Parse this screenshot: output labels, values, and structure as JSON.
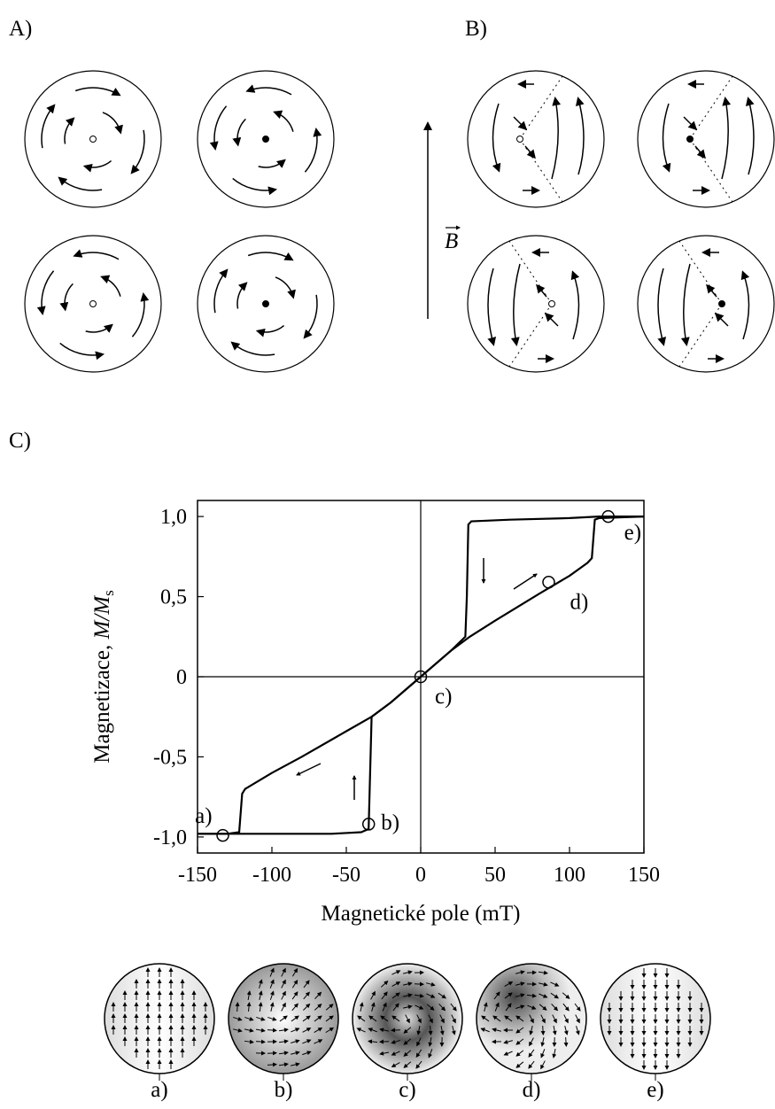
{
  "panel_labels": [
    "A)",
    "B)",
    "C)"
  ],
  "field_label": "B",
  "chart_data": {
    "type": "line",
    "x_label": "Magnetické pole (mT)",
    "y_label": {
      "text": "Magnetizace, ",
      "math": "M/M",
      "sub": "s"
    },
    "xlim": [
      -150,
      150
    ],
    "ylim": [
      -1.1,
      1.1
    ],
    "xticks": [
      -150,
      -100,
      -50,
      0,
      50,
      100,
      150
    ],
    "yticks": [
      {
        "value": -1,
        "label": "-1,0"
      },
      {
        "value": -0.5,
        "label": "-0,5"
      },
      0,
      {
        "value": 0.5,
        "label": "0,5"
      },
      {
        "value": 1,
        "label": "1,0"
      }
    ],
    "series": [
      {
        "color": "#000000",
        "x": [
          150,
          120,
          100,
          60,
          34,
          32,
          31,
          30,
          20,
          0,
          -20,
          -33,
          -50,
          -80,
          -100,
          -118,
          -120,
          -122,
          -130,
          -150
        ],
        "values": [
          1,
          1,
          0.99,
          0.98,
          0.97,
          0.95,
          0.5,
          0.25,
          0.16,
          0,
          -0.16,
          -0.25,
          -0.34,
          -0.5,
          -0.6,
          -0.7,
          -0.73,
          -0.97,
          -0.98,
          -0.98
        ]
      },
      {
        "color": "#000000",
        "x": [
          -150,
          -100,
          -60,
          -40,
          -35,
          -34,
          -33,
          -20,
          0,
          20,
          33,
          50,
          80,
          100,
          112,
          115,
          117,
          120,
          150
        ],
        "values": [
          -0.98,
          -0.98,
          -0.98,
          -0.97,
          -0.95,
          -0.6,
          -0.25,
          -0.16,
          0,
          0.16,
          0.25,
          0.35,
          0.52,
          0.63,
          0.71,
          0.74,
          0.98,
          0.99,
          1
        ]
      }
    ],
    "annotations": [
      {
        "label": "a)",
        "x": -133,
        "y": -0.99
      },
      {
        "label": "b)",
        "x": -35,
        "y": -0.92
      },
      {
        "label": "c)",
        "x": 0,
        "y": 0
      },
      {
        "label": "d)",
        "x": 86,
        "y": 0.59
      },
      {
        "label": "e)",
        "x": 126,
        "y": 1
      }
    ]
  },
  "state_labels": [
    "a)",
    "b)",
    "c)",
    "d)",
    "e)"
  ]
}
